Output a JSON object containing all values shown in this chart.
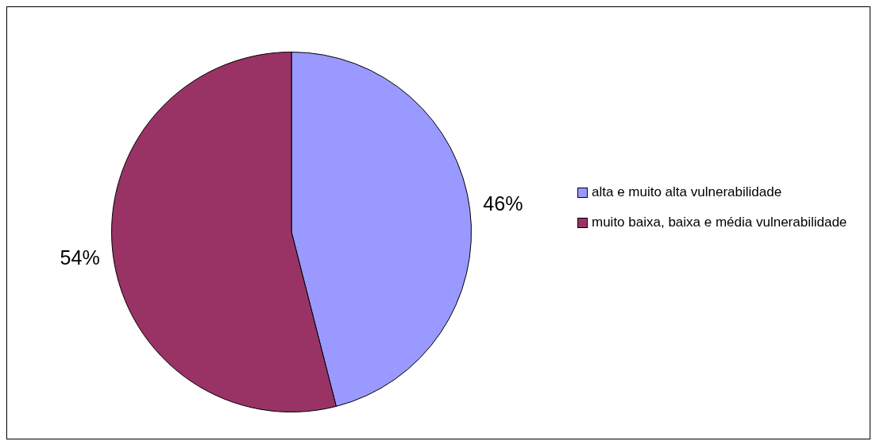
{
  "chart_data": {
    "type": "pie",
    "categories": [
      "alta e muito alta vulnerabilidade",
      "muito baixa, baixa e média vulnerabilidade"
    ],
    "values": [
      46,
      54
    ],
    "colors": [
      "#9999ff",
      "#993366"
    ],
    "value_labels": [
      "46%",
      "54%"
    ],
    "legend": "right"
  }
}
